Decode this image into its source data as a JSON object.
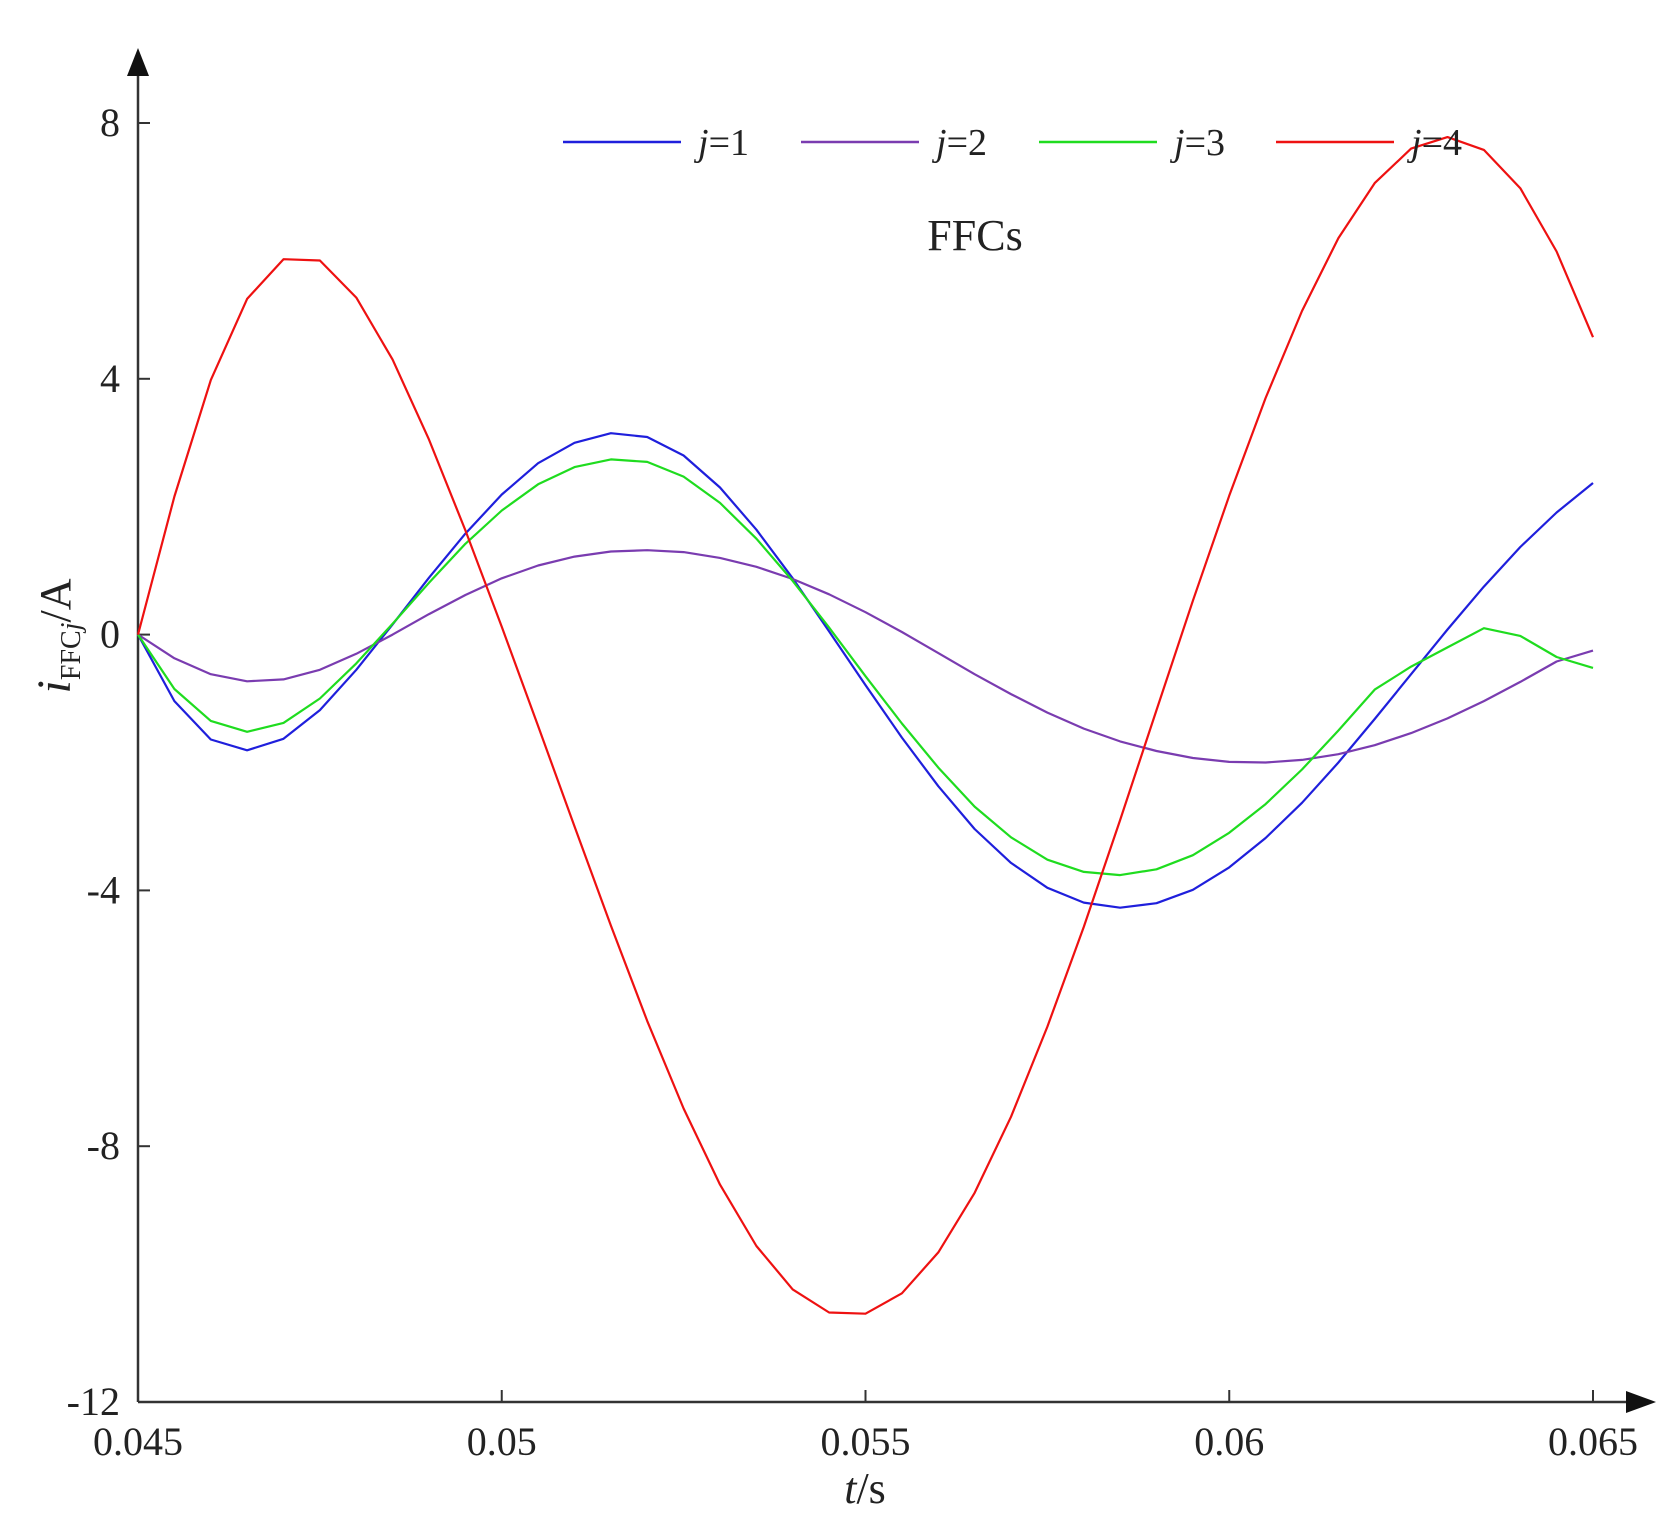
{
  "chart_data": {
    "type": "line",
    "title": "",
    "annotation": "FFCs",
    "xlabel": {
      "var": "t",
      "unit": "/s"
    },
    "ylabel": {
      "var": "i",
      "sub": "FFC",
      "sub_var": "j",
      "unit": "/A"
    },
    "xlim": [
      0.045,
      0.065
    ],
    "ylim": [
      -12,
      9
    ],
    "xticks": [
      0.045,
      0.05,
      0.055,
      0.06,
      0.065
    ],
    "xtick_labels": [
      "0.045",
      "0.05",
      "0.055",
      "0.06",
      "0.065"
    ],
    "yticks": [
      8,
      4,
      0,
      -4,
      -8,
      -12
    ],
    "ytick_labels": [
      "8",
      "4",
      "0",
      "-4",
      "-8",
      "-12"
    ],
    "grid": false,
    "legend_position": "top",
    "series": [
      {
        "name": "j=1",
        "label_var": "j",
        "label_rest": "=1",
        "color": "#1f1fdc",
        "x": [
          0.045,
          0.0455,
          0.046,
          0.0465,
          0.047,
          0.0475,
          0.048,
          0.0485,
          0.049,
          0.0495,
          0.05,
          0.0505,
          0.051,
          0.0515,
          0.052,
          0.0525,
          0.053,
          0.0535,
          0.054,
          0.0545,
          0.055,
          0.0555,
          0.056,
          0.0565,
          0.057,
          0.0575,
          0.058,
          0.0585,
          0.059,
          0.0595,
          0.06,
          0.0605,
          0.061,
          0.0615,
          0.062,
          0.0625,
          0.063,
          0.0635,
          0.064,
          0.0645,
          0.065
        ],
        "y": [
          0.0,
          -1.04,
          -1.64,
          -1.81,
          -1.63,
          -1.18,
          -0.55,
          0.16,
          0.89,
          1.58,
          2.19,
          2.68,
          3.0,
          3.15,
          3.09,
          2.8,
          2.3,
          1.64,
          0.88,
          0.05,
          -0.79,
          -1.61,
          -2.37,
          -3.04,
          -3.57,
          -3.96,
          -4.19,
          -4.27,
          -4.2,
          -3.99,
          -3.64,
          -3.18,
          -2.63,
          -2.0,
          -1.32,
          -0.62,
          0.08,
          0.75,
          1.37,
          1.91,
          2.37
        ]
      },
      {
        "name": "j=2",
        "label_var": "j",
        "label_rest": "=2",
        "color": "#7a3cb0",
        "x": [
          0.045,
          0.0455,
          0.046,
          0.0465,
          0.047,
          0.0475,
          0.048,
          0.0485,
          0.049,
          0.0495,
          0.05,
          0.0505,
          0.051,
          0.0515,
          0.052,
          0.0525,
          0.053,
          0.0535,
          0.054,
          0.0545,
          0.055,
          0.0555,
          0.056,
          0.0565,
          0.057,
          0.0575,
          0.058,
          0.0585,
          0.059,
          0.0595,
          0.06,
          0.0605,
          0.061,
          0.0615,
          0.062,
          0.0625,
          0.063,
          0.0635,
          0.064,
          0.0645,
          0.065
        ],
        "y": [
          0.0,
          -0.37,
          -0.62,
          -0.73,
          -0.7,
          -0.55,
          -0.3,
          0.0,
          0.32,
          0.62,
          0.88,
          1.08,
          1.22,
          1.3,
          1.32,
          1.29,
          1.2,
          1.06,
          0.87,
          0.63,
          0.35,
          0.04,
          -0.29,
          -0.62,
          -0.93,
          -1.22,
          -1.47,
          -1.67,
          -1.82,
          -1.93,
          -1.99,
          -2.0,
          -1.96,
          -1.87,
          -1.73,
          -1.54,
          -1.31,
          -1.04,
          -0.74,
          -0.42,
          -0.25
        ]
      },
      {
        "name": "j=3",
        "label_var": "j",
        "label_rest": "=3",
        "color": "#1fdc1f",
        "x": [
          0.045,
          0.0455,
          0.046,
          0.0465,
          0.047,
          0.0475,
          0.048,
          0.0485,
          0.049,
          0.0495,
          0.05,
          0.0505,
          0.051,
          0.0515,
          0.052,
          0.0525,
          0.053,
          0.0535,
          0.054,
          0.0545,
          0.055,
          0.0555,
          0.056,
          0.0565,
          0.057,
          0.0575,
          0.058,
          0.0585,
          0.059,
          0.0595,
          0.06,
          0.0605,
          0.061,
          0.0615,
          0.062,
          0.0625,
          0.063,
          0.0635,
          0.064,
          0.0645,
          0.065
        ],
        "y": [
          0.0,
          -0.85,
          -1.35,
          -1.52,
          -1.38,
          -1.0,
          -0.45,
          0.17,
          0.81,
          1.42,
          1.94,
          2.35,
          2.62,
          2.74,
          2.7,
          2.47,
          2.06,
          1.5,
          0.84,
          0.11,
          -0.65,
          -1.39,
          -2.08,
          -2.69,
          -3.17,
          -3.52,
          -3.71,
          -3.76,
          -3.67,
          -3.45,
          -3.1,
          -2.65,
          -2.11,
          -1.5,
          -0.86,
          -0.5,
          -0.2,
          0.1,
          -0.02,
          -0.35,
          -0.52
        ]
      },
      {
        "name": "j=4",
        "label_var": "j",
        "label_rest": "=4",
        "color": "#ee1111",
        "x": [
          0.045,
          0.0455,
          0.046,
          0.0465,
          0.047,
          0.0475,
          0.048,
          0.0485,
          0.049,
          0.0495,
          0.05,
          0.0505,
          0.051,
          0.0515,
          0.052,
          0.0525,
          0.053,
          0.0535,
          0.054,
          0.0545,
          0.055,
          0.0555,
          0.056,
          0.0565,
          0.057,
          0.0575,
          0.058,
          0.0585,
          0.059,
          0.0595,
          0.06,
          0.0605,
          0.061,
          0.0615,
          0.062,
          0.0625,
          0.063,
          0.0635,
          0.064,
          0.0645,
          0.065
        ],
        "y": [
          0.0,
          2.16,
          3.98,
          5.25,
          5.87,
          5.85,
          5.27,
          4.3,
          3.05,
          1.63,
          0.12,
          -1.43,
          -3.0,
          -4.55,
          -6.04,
          -7.41,
          -8.6,
          -9.56,
          -10.24,
          -10.6,
          -10.62,
          -10.3,
          -9.66,
          -8.73,
          -7.54,
          -6.13,
          -4.57,
          -2.9,
          -1.18,
          0.53,
          2.17,
          3.7,
          5.06,
          6.2,
          7.06,
          7.6,
          7.78,
          7.58,
          6.98,
          5.99,
          4.65
        ]
      }
    ]
  }
}
